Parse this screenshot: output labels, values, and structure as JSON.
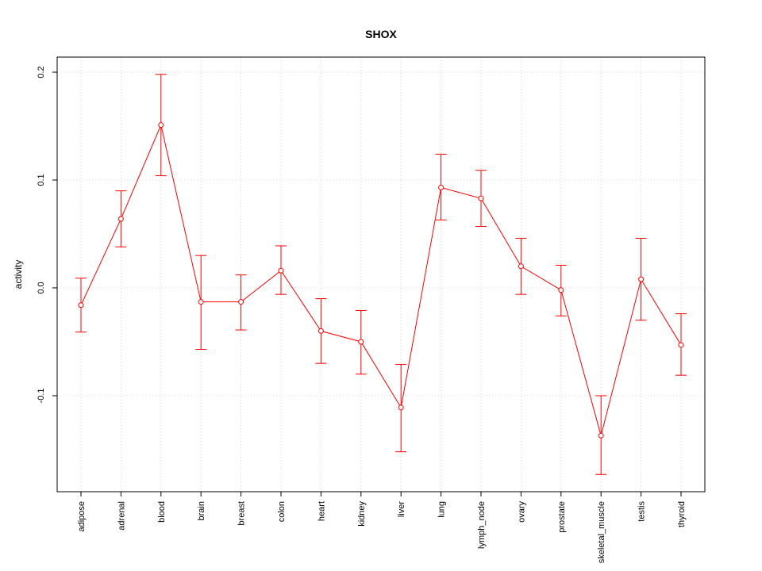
{
  "chart_data": {
    "type": "line",
    "title": "SHOX",
    "xlabel": "",
    "ylabel": "activity",
    "categories": [
      "adipose",
      "adrenal",
      "blood",
      "brain",
      "breast",
      "colon",
      "heart",
      "kidney",
      "liver",
      "lung",
      "lymph_node",
      "ovary",
      "prostate",
      "skeletal_muscle",
      "testis",
      "thyroid"
    ],
    "values": [
      -0.016,
      0.064,
      0.151,
      -0.013,
      -0.013,
      0.016,
      -0.04,
      -0.05,
      -0.111,
      0.093,
      0.083,
      0.02,
      -0.002,
      -0.137,
      0.008,
      -0.053
    ],
    "error_low": [
      -0.041,
      0.038,
      0.104,
      -0.057,
      -0.039,
      -0.006,
      -0.07,
      -0.08,
      -0.152,
      0.063,
      0.057,
      -0.006,
      -0.026,
      -0.173,
      -0.03,
      -0.081
    ],
    "error_high": [
      0.009,
      0.09,
      0.198,
      0.03,
      0.012,
      0.039,
      -0.01,
      -0.021,
      -0.071,
      0.124,
      0.109,
      0.046,
      0.021,
      -0.1,
      0.046,
      -0.024
    ],
    "yticks": [
      "-0.1",
      "0.0",
      "0.1",
      "0.2"
    ],
    "ylim": [
      -0.189,
      0.214
    ],
    "grid": true,
    "color": "#ff0000"
  }
}
